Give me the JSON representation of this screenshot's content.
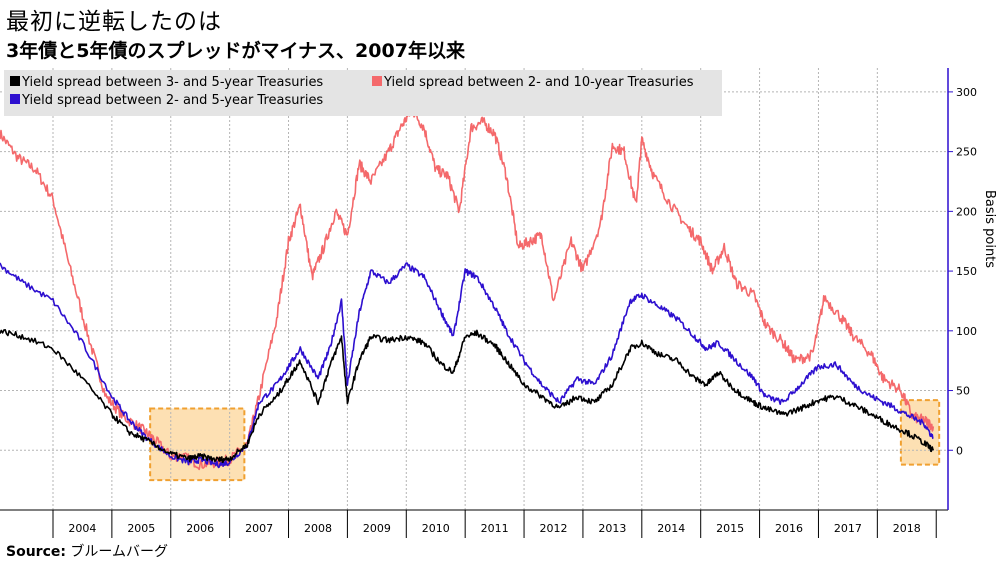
{
  "header": {
    "title": "最初に逆転したのは",
    "subtitle": "3年債と5年債のスプレッドがマイナス、2007年以来"
  },
  "footer": {
    "source_label": "Source:",
    "source_value": "ブルームバーグ"
  },
  "chart_data": {
    "type": "line",
    "ylabel": "Basis points",
    "ylim": [
      -50,
      320
    ],
    "yticks": [
      0,
      50,
      100,
      150,
      200,
      250,
      300
    ],
    "x_unit": "year",
    "xlim": [
      2003.1,
      2019.2
    ],
    "xtick_labels": [
      "2004",
      "2005",
      "2006",
      "2007",
      "2008",
      "2009",
      "2010",
      "2011",
      "2012",
      "2013",
      "2014",
      "2015",
      "2016",
      "2017",
      "2018"
    ],
    "grid": true,
    "legend_position": "top-left",
    "series": [
      {
        "name": "Yield spread between 3- and 5-year Treasuries",
        "color": "#000000",
        "x": [
          2003.1,
          2003.5,
          2004.0,
          2004.5,
          2005.0,
          2005.3,
          2005.6,
          2006.0,
          2006.3,
          2006.5,
          2006.8,
          2007.0,
          2007.3,
          2007.5,
          2007.8,
          2008.0,
          2008.2,
          2008.5,
          2008.7,
          2008.9,
          2009.0,
          2009.2,
          2009.4,
          2009.7,
          2010.0,
          2010.3,
          2010.6,
          2010.8,
          2011.0,
          2011.2,
          2011.5,
          2011.7,
          2012.0,
          2012.3,
          2012.6,
          2012.9,
          2013.2,
          2013.5,
          2013.8,
          2014.0,
          2014.3,
          2014.6,
          2014.9,
          2015.1,
          2015.3,
          2015.6,
          2015.9,
          2016.1,
          2016.4,
          2016.7,
          2017.0,
          2017.3,
          2017.6,
          2017.9,
          2018.2,
          2018.5,
          2018.8,
          2018.95
        ],
        "y": [
          100,
          95,
          85,
          60,
          30,
          15,
          8,
          -3,
          -7,
          -5,
          -8,
          -7,
          5,
          30,
          45,
          60,
          75,
          40,
          70,
          95,
          40,
          75,
          95,
          92,
          95,
          90,
          72,
          65,
          95,
          98,
          88,
          75,
          55,
          45,
          35,
          45,
          40,
          55,
          85,
          90,
          80,
          75,
          60,
          55,
          65,
          50,
          40,
          35,
          30,
          35,
          42,
          45,
          38,
          30,
          22,
          15,
          6,
          0
        ]
      },
      {
        "name": "Yield spread between 2- and 10-year Treasuries",
        "color": "#f4696b",
        "x": [
          2003.1,
          2003.4,
          2003.7,
          2004.0,
          2004.3,
          2004.6,
          2004.9,
          2005.2,
          2005.5,
          2005.7,
          2006.0,
          2006.2,
          2006.5,
          2006.8,
          2007.0,
          2007.3,
          2007.5,
          2007.8,
          2008.0,
          2008.2,
          2008.4,
          2008.6,
          2008.8,
          2009.0,
          2009.2,
          2009.4,
          2009.7,
          2009.9,
          2010.1,
          2010.3,
          2010.5,
          2010.7,
          2010.9,
          2011.1,
          2011.3,
          2011.5,
          2011.7,
          2011.9,
          2012.1,
          2012.3,
          2012.5,
          2012.8,
          2013.0,
          2013.3,
          2013.5,
          2013.7,
          2013.9,
          2014.0,
          2014.2,
          2014.5,
          2014.8,
          2015.0,
          2015.2,
          2015.4,
          2015.6,
          2015.9,
          2016.1,
          2016.4,
          2016.6,
          2016.9,
          2017.1,
          2017.4,
          2017.6,
          2017.9,
          2018.1,
          2018.4,
          2018.6,
          2018.8,
          2018.95
        ],
        "y": [
          265,
          245,
          235,
          210,
          150,
          95,
          45,
          28,
          18,
          10,
          -5,
          -5,
          -12,
          -10,
          -8,
          5,
          45,
          110,
          175,
          205,
          145,
          170,
          200,
          180,
          240,
          225,
          250,
          270,
          285,
          270,
          235,
          230,
          200,
          270,
          275,
          265,
          230,
          170,
          175,
          180,
          125,
          175,
          150,
          190,
          255,
          250,
          205,
          260,
          230,
          205,
          185,
          175,
          150,
          170,
          140,
          130,
          105,
          90,
          75,
          80,
          128,
          110,
          95,
          80,
          60,
          50,
          28,
          25,
          20
        ]
      },
      {
        "name": "Yield spread between 2- and 5-year Treasuries",
        "color": "#2d0fcf",
        "x": [
          2003.1,
          2003.5,
          2004.0,
          2004.5,
          2005.0,
          2005.3,
          2005.6,
          2006.0,
          2006.3,
          2006.5,
          2006.8,
          2007.0,
          2007.3,
          2007.5,
          2007.8,
          2008.0,
          2008.2,
          2008.5,
          2008.7,
          2008.9,
          2009.0,
          2009.2,
          2009.4,
          2009.7,
          2010.0,
          2010.3,
          2010.6,
          2010.8,
          2011.0,
          2011.2,
          2011.5,
          2011.7,
          2012.0,
          2012.3,
          2012.6,
          2012.9,
          2013.2,
          2013.5,
          2013.8,
          2014.0,
          2014.3,
          2014.6,
          2014.9,
          2015.1,
          2015.3,
          2015.6,
          2015.9,
          2016.1,
          2016.4,
          2016.7,
          2017.0,
          2017.3,
          2017.6,
          2017.9,
          2018.2,
          2018.5,
          2018.8,
          2018.95
        ],
        "y": [
          155,
          140,
          125,
          90,
          45,
          25,
          10,
          -5,
          -10,
          -8,
          -12,
          -10,
          5,
          40,
          55,
          70,
          85,
          60,
          85,
          125,
          55,
          115,
          150,
          140,
          155,
          145,
          115,
          95,
          150,
          145,
          120,
          100,
          75,
          55,
          40,
          60,
          55,
          80,
          125,
          130,
          120,
          110,
          95,
          85,
          90,
          75,
          60,
          45,
          40,
          55,
          70,
          72,
          55,
          45,
          38,
          30,
          22,
          10
        ]
      }
    ],
    "highlight_boxes": [
      {
        "x0": 2005.65,
        "x1": 2007.25,
        "y0": -25,
        "y1": 35,
        "color": "#fcd59a"
      },
      {
        "x0": 2018.4,
        "x1": 2019.05,
        "y0": -12,
        "y1": 42,
        "color": "#fcd59a"
      }
    ]
  }
}
